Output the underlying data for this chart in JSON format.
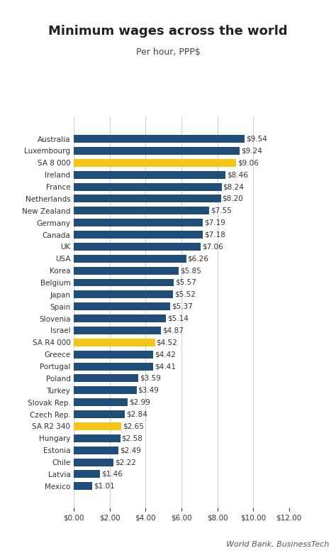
{
  "title": "Minimum wages across the world",
  "subtitle": "Per hour, PPP$",
  "source": "World Bank, BusinessTech",
  "categories": [
    "Australia",
    "Luxembourg",
    "SA 8 000",
    "Ireland",
    "France",
    "Netherlands",
    "New Zealand",
    "Germany",
    "Canada",
    "UK",
    "USA",
    "Korea",
    "Belgium",
    "Japan",
    "Spain",
    "Slovenia",
    "Israel",
    "SA R4 000",
    "Greece",
    "Portugal",
    "Poland",
    "Turkey",
    "Slovak Rep.",
    "Czech Rep.",
    "SA R2 340",
    "Hungary",
    "Estonia",
    "Chile",
    "Latvia",
    "Mexico"
  ],
  "values": [
    9.54,
    9.24,
    9.06,
    8.46,
    8.24,
    8.2,
    7.55,
    7.19,
    7.18,
    7.06,
    6.26,
    5.85,
    5.57,
    5.52,
    5.37,
    5.14,
    4.87,
    4.52,
    4.42,
    4.41,
    3.59,
    3.49,
    2.99,
    2.84,
    2.65,
    2.58,
    2.49,
    2.22,
    1.46,
    1.01
  ],
  "highlight_indices": [
    2,
    17,
    24
  ],
  "bar_color_normal": "#1F4E79",
  "bar_color_highlight": "#F5C518",
  "background_color": "#FFFFFF",
  "title_fontsize": 13,
  "subtitle_fontsize": 9,
  "label_fontsize": 7.5,
  "tick_fontsize": 7.5,
  "source_fontsize": 8,
  "xlim": [
    0,
    12
  ],
  "xticks": [
    0,
    2,
    4,
    6,
    8,
    10,
    12
  ]
}
